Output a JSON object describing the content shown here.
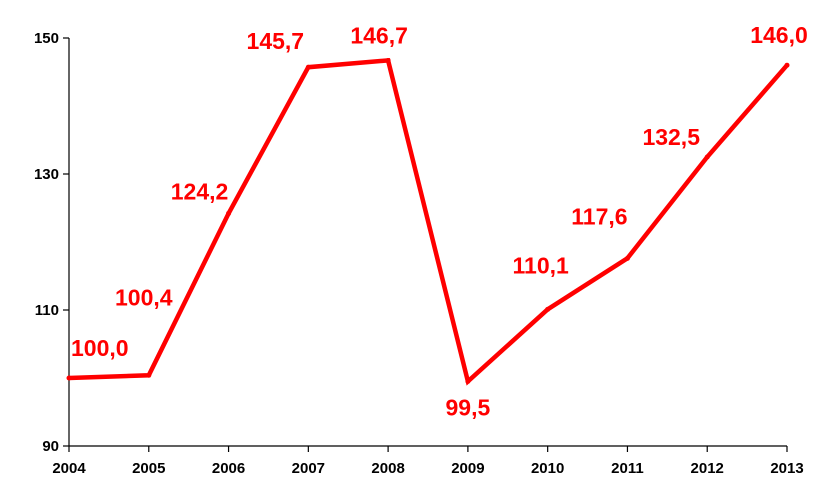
{
  "chart_data": {
    "type": "line",
    "title": "",
    "xlabel": "",
    "ylabel": "",
    "x": [
      "2004",
      "2005",
      "2006",
      "2007",
      "2008",
      "2009",
      "2010",
      "2011",
      "2012",
      "2013"
    ],
    "series": [
      {
        "values": [
          100.0,
          100.4,
          124.2,
          145.7,
          146.7,
          99.5,
          110.1,
          117.6,
          132.5,
          146.0
        ],
        "labels": [
          "100,0",
          "100,4",
          "124,2",
          "145,7",
          "146,7",
          "99,5",
          "110,1",
          "117,6",
          "132,5",
          "146,0"
        ],
        "color": "#ff0000"
      }
    ],
    "ylim": [
      90,
      150
    ],
    "yticks": [
      "90",
      "110",
      "130",
      "150"
    ],
    "grid": false,
    "legend": "none"
  }
}
